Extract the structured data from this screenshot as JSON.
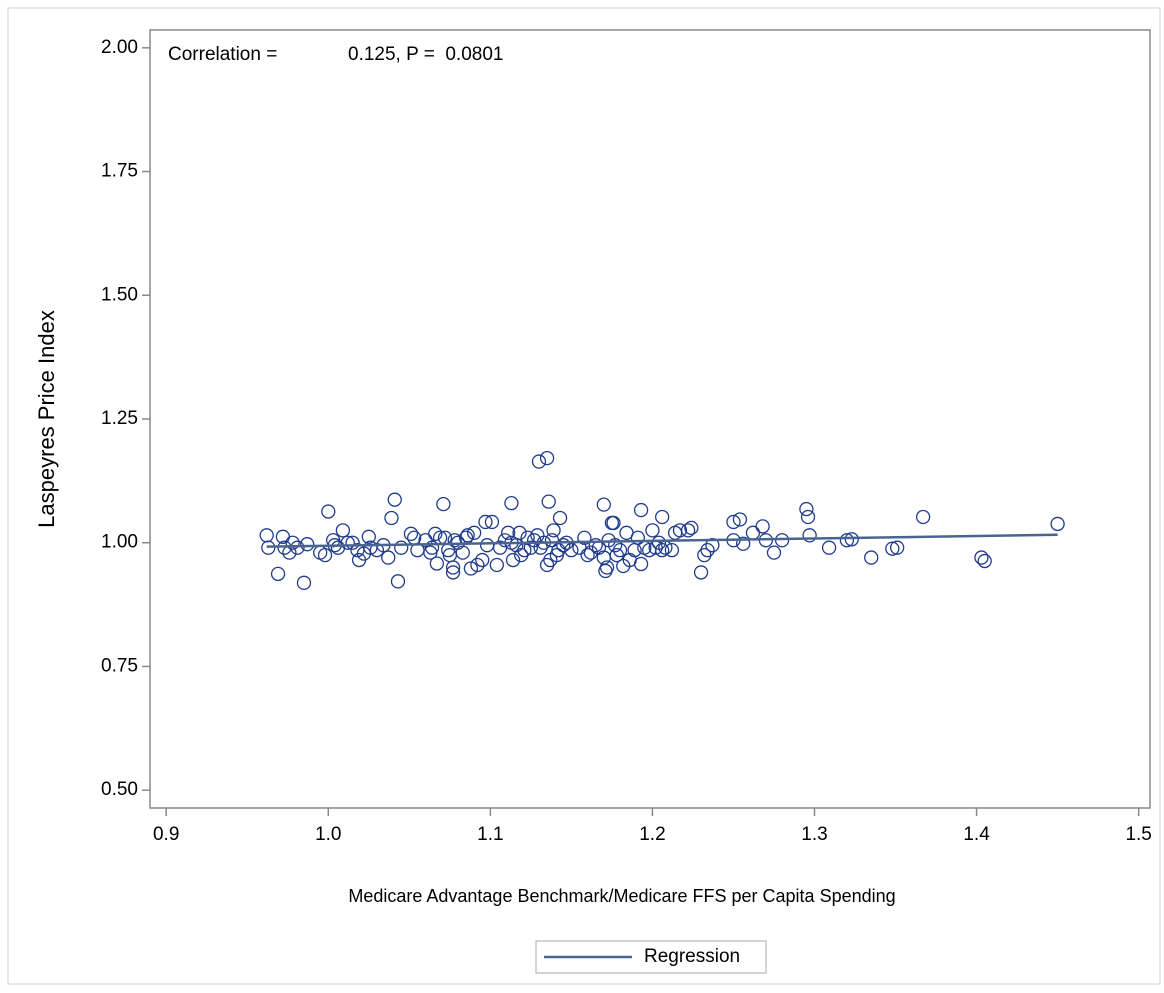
{
  "chart_data": {
    "type": "scatter",
    "annotations": [
      "Correlation =",
      "0.125, P =  0.0801"
    ],
    "x_label": "Medicare Advantage Benchmark/Medicare FFS per Capita Spending",
    "y_label": "Laspeyres Price Index",
    "xlim": [
      0.89,
      1.507
    ],
    "ylim": [
      0.464,
      2.036
    ],
    "xticks": [
      0.9,
      {
        "value": 1,
        "label": "1.0"
      },
      1.1,
      1.2,
      1.3,
      1.4,
      1.5
    ],
    "yticks": [
      {
        "value": 0.5,
        "label": "0.50"
      },
      0.75,
      {
        "value": 1,
        "label": "1.00"
      },
      1.25,
      {
        "value": 1.5,
        "label": "1.50"
      },
      1.75,
      {
        "value": 2,
        "label": "2.00"
      }
    ],
    "series": [
      {
        "color": "#1f3b8c",
        "x": [
          0.985,
          0.969,
          1.0,
          1.039,
          1.041,
          1.043,
          1.071,
          1.097,
          1.101,
          1.113,
          1.13,
          1.135,
          1.136,
          1.143,
          1.17,
          1.193,
          1.206,
          1.23,
          1.25,
          1.254,
          1.268,
          1.295,
          1.296,
          1.309,
          1.32,
          1.323,
          1.335,
          1.348,
          1.351,
          1.367,
          1.403,
          1.405,
          1.45,
          0.962,
          0.963,
          0.972,
          0.973,
          0.976,
          0.978,
          0.981,
          0.987,
          0.995,
          0.998,
          1.003,
          1.004,
          1.006,
          1.009,
          1.012,
          1.015,
          1.018,
          1.019,
          1.022,
          1.025,
          1.026,
          1.03,
          1.034,
          1.037,
          1.045,
          1.051,
          1.053,
          1.055,
          1.06,
          1.063,
          1.064,
          1.066,
          1.067,
          1.069,
          1.072,
          1.074,
          1.075,
          1.077,
          1.077,
          1.078,
          1.08,
          1.083,
          1.085,
          1.086,
          1.088,
          1.09,
          1.092,
          1.095,
          1.098,
          1.104,
          1.106,
          1.109,
          1.111,
          1.113,
          1.114,
          1.116,
          1.118,
          1.119,
          1.121,
          1.123,
          1.125,
          1.127,
          1.129,
          1.131,
          1.133,
          1.135,
          1.137,
          1.138,
          1.139,
          1.141,
          1.142,
          1.145,
          1.147,
          1.15,
          1.155,
          1.158,
          1.16,
          1.162,
          1.165,
          1.167,
          1.17,
          1.171,
          1.172,
          1.173,
          1.175,
          1.176,
          1.177,
          1.178,
          1.18,
          1.182,
          1.184,
          1.186,
          1.189,
          1.191,
          1.193,
          1.195,
          1.198,
          1.2,
          1.202,
          1.204,
          1.206,
          1.208,
          1.212,
          1.214,
          1.217,
          1.222,
          1.224,
          1.232,
          1.234,
          1.237,
          1.25,
          1.256,
          1.262,
          1.27,
          1.275,
          1.28,
          1.297
        ],
        "values": [
          0.919,
          0.937,
          1.063,
          1.05,
          1.087,
          0.922,
          1.078,
          1.042,
          1.042,
          1.08,
          1.164,
          1.171,
          1.083,
          1.05,
          1.077,
          1.066,
          1.052,
          0.94,
          1.042,
          1.047,
          1.033,
          1.068,
          1.052,
          0.99,
          1.005,
          1.007,
          0.97,
          0.988,
          0.99,
          1.052,
          0.97,
          0.963,
          1.038,
          1.015,
          0.99,
          1.012,
          0.99,
          0.98,
          1.0,
          0.99,
          0.997,
          0.98,
          0.975,
          1.005,
          0.995,
          0.99,
          1.025,
          1.0,
          1.0,
          0.985,
          0.965,
          0.978,
          1.012,
          0.99,
          0.985,
          0.995,
          0.97,
          0.99,
          1.018,
          1.01,
          0.985,
          1.005,
          0.98,
          0.99,
          1.018,
          0.958,
          1.01,
          1.01,
          0.985,
          0.975,
          0.95,
          0.94,
          1.005,
          1.0,
          0.98,
          1.01,
          1.015,
          0.948,
          1.02,
          0.955,
          0.965,
          0.995,
          0.955,
          0.99,
          1.005,
          1.02,
          1.0,
          0.965,
          0.995,
          1.02,
          0.975,
          0.985,
          1.01,
          0.99,
          1.005,
          1.015,
          0.99,
          1.0,
          0.955,
          0.965,
          1.005,
          1.025,
          0.975,
          0.985,
          0.995,
          1.0,
          0.985,
          0.99,
          1.01,
          0.975,
          0.98,
          0.995,
          0.99,
          0.97,
          0.943,
          0.95,
          1.005,
          1.04,
          1.04,
          0.995,
          0.975,
          0.985,
          0.953,
          1.02,
          0.965,
          0.985,
          1.01,
          0.957,
          0.99,
          0.985,
          1.025,
          0.99,
          1.0,
          0.985,
          0.99,
          0.985,
          1.02,
          1.025,
          1.025,
          1.03,
          0.975,
          0.985,
          0.995,
          1.005,
          0.998,
          1.02,
          1.005,
          0.98,
          1.005,
          1.015
        ]
      },
      {
        "name": "Regression",
        "color": "#4a6491",
        "x": [
          0.962,
          1.45
        ],
        "values": [
          0.992,
          1.016
        ]
      }
    ]
  }
}
